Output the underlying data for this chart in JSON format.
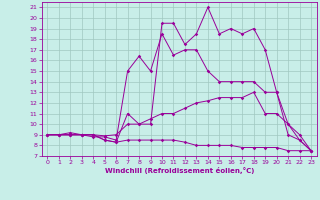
{
  "xlabel": "Windchill (Refroidissement éolien,°C)",
  "bg_color": "#c8eee8",
  "line_color": "#990099",
  "grid_color": "#a0c8c0",
  "xlim": [
    -0.5,
    23.5
  ],
  "ylim": [
    7,
    21.5
  ],
  "xticks": [
    0,
    1,
    2,
    3,
    4,
    5,
    6,
    7,
    8,
    9,
    10,
    11,
    12,
    13,
    14,
    15,
    16,
    17,
    18,
    19,
    20,
    21,
    22,
    23
  ],
  "yticks": [
    7,
    8,
    9,
    10,
    11,
    12,
    13,
    14,
    15,
    16,
    17,
    18,
    19,
    20,
    21
  ],
  "lines": [
    {
      "x": [
        0,
        1,
        2,
        3,
        4,
        5,
        6,
        7,
        8,
        9,
        10,
        11,
        12,
        13,
        14,
        15,
        16,
        17,
        18,
        19,
        20,
        21,
        22,
        23
      ],
      "y": [
        9,
        9,
        9,
        9,
        9,
        8.5,
        8.3,
        11,
        10,
        10,
        19.5,
        19.5,
        17.5,
        18.5,
        21,
        18.5,
        19,
        18.5,
        19,
        17,
        13,
        9,
        8.5,
        7.5
      ]
    },
    {
      "x": [
        0,
        1,
        2,
        3,
        4,
        5,
        6,
        7,
        8,
        9,
        10,
        11,
        12,
        13,
        14,
        15,
        16,
        17,
        18,
        19,
        20,
        21,
        22,
        23
      ],
      "y": [
        9,
        9,
        9.2,
        9,
        8.8,
        8.8,
        8.5,
        15,
        16.4,
        15,
        18.5,
        16.5,
        17,
        17,
        15,
        14,
        14,
        14,
        14,
        13,
        13,
        10,
        9,
        7.5
      ]
    },
    {
      "x": [
        0,
        1,
        2,
        3,
        4,
        5,
        6,
        7,
        8,
        9,
        10,
        11,
        12,
        13,
        14,
        15,
        16,
        17,
        18,
        19,
        20,
        21,
        22,
        23
      ],
      "y": [
        9,
        9,
        9,
        9,
        9,
        8.9,
        9,
        10,
        10,
        10.5,
        11,
        11,
        11.5,
        12,
        12.2,
        12.5,
        12.5,
        12.5,
        13,
        11,
        11,
        10,
        8.5,
        7.5
      ]
    },
    {
      "x": [
        0,
        1,
        2,
        3,
        4,
        5,
        6,
        7,
        8,
        9,
        10,
        11,
        12,
        13,
        14,
        15,
        16,
        17,
        18,
        19,
        20,
        21,
        22,
        23
      ],
      "y": [
        9,
        9,
        9,
        9,
        9,
        8.5,
        8.3,
        8.5,
        8.5,
        8.5,
        8.5,
        8.5,
        8.3,
        8,
        8,
        8,
        8,
        7.8,
        7.8,
        7.8,
        7.8,
        7.5,
        7.5,
        7.5
      ]
    }
  ]
}
